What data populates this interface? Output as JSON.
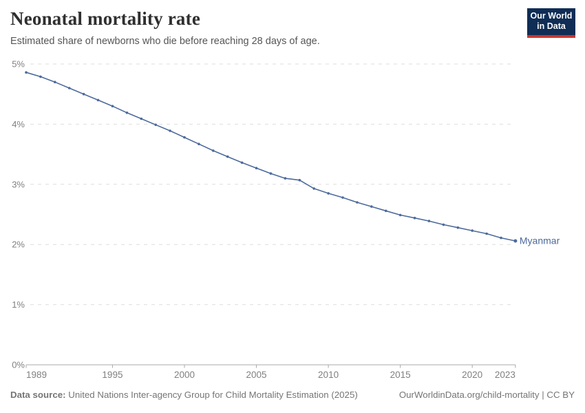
{
  "header": {
    "title": "Neonatal mortality rate",
    "subtitle": "Estimated share of newborns who die before reaching 28 days of age.",
    "logo": {
      "line1": "Our World",
      "line2": "in Data"
    }
  },
  "colors": {
    "line": "#4C6A9C",
    "entity_label": "#4C6A9C",
    "grid": "#dedede",
    "axis": "#a8a8a8",
    "tick_label": "#808080",
    "logo_bg": "#0f2d55",
    "logo_accent": "#c9372c"
  },
  "chart_data": {
    "type": "line",
    "title": "Neonatal mortality rate",
    "subtitle": "Estimated share of newborns who die before reaching 28 days of age.",
    "entity": "Myanmar",
    "unit": "%",
    "xlim": [
      1989,
      2023
    ],
    "ylim": [
      0,
      5
    ],
    "x_ticks": [
      1989,
      1995,
      2000,
      2005,
      2010,
      2015,
      2020,
      2023
    ],
    "y_ticks": [
      0,
      1,
      2,
      3,
      4,
      5
    ],
    "y_tick_labels": [
      "0%",
      "1%",
      "2%",
      "3%",
      "4%",
      "5%"
    ],
    "grid": "horizontal-dashed",
    "legend_position": "end-of-line-label",
    "series": [
      {
        "name": "Myanmar",
        "x": [
          1989,
          1990,
          1991,
          1992,
          1993,
          1994,
          1995,
          1996,
          1997,
          1998,
          1999,
          2000,
          2001,
          2002,
          2003,
          2004,
          2005,
          2006,
          2007,
          2008,
          2009,
          2010,
          2011,
          2012,
          2013,
          2014,
          2015,
          2016,
          2017,
          2018,
          2019,
          2020,
          2021,
          2022,
          2023
        ],
        "values": [
          4.86,
          4.79,
          4.7,
          4.6,
          4.5,
          4.4,
          4.3,
          4.19,
          4.09,
          3.99,
          3.89,
          3.78,
          3.67,
          3.56,
          3.46,
          3.36,
          3.27,
          3.18,
          3.1,
          3.07,
          2.93,
          2.85,
          2.78,
          2.7,
          2.63,
          2.56,
          2.49,
          2.44,
          2.39,
          2.33,
          2.28,
          2.23,
          2.18,
          2.11,
          2.06
        ]
      }
    ]
  },
  "footer": {
    "source_label": "Data source:",
    "source_text": " United Nations Inter-agency Group for Child Mortality Estimation (2025)",
    "right_text": "OurWorldinData.org/child-mortality | CC BY"
  }
}
